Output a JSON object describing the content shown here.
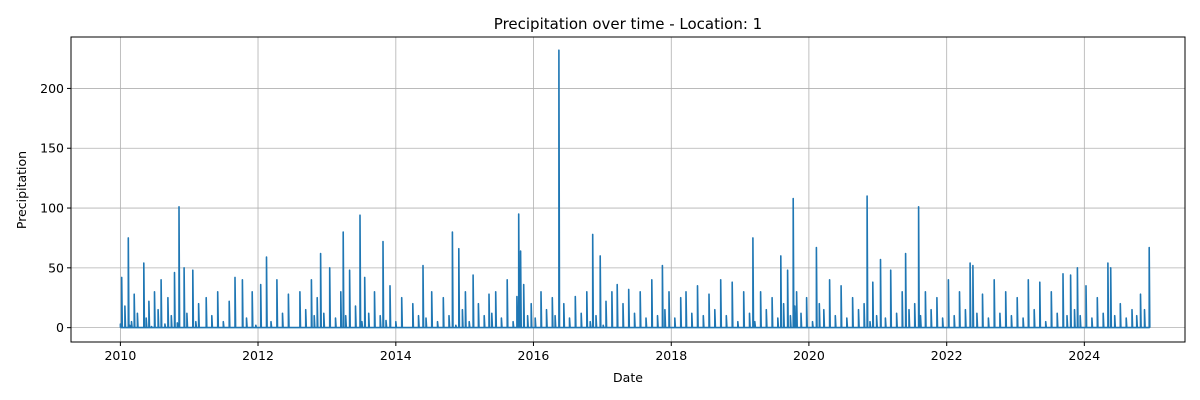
{
  "chart_data": {
    "type": "line",
    "title": "Precipitation over time - Location: 1",
    "xlabel": "Date",
    "ylabel": "Precipitation",
    "grid": true,
    "x_axis_type": "date",
    "xlim": [
      "2009-04-14",
      "2025-06-18"
    ],
    "ylim": [
      -12,
      243
    ],
    "x_ticks": [
      "2010",
      "2012",
      "2014",
      "2016",
      "2018",
      "2020",
      "2022",
      "2024"
    ],
    "y_ticks": [
      "0",
      "50",
      "100",
      "150",
      "200"
    ],
    "line_color": "#1f77b4",
    "series": [
      {
        "x": [
          "2010-01-01",
          "2010-01-08",
          "2010-01-15",
          "2010-01-25",
          "2010-02-06",
          "2010-02-12",
          "2010-02-20",
          "2010-03-01",
          "2010-03-15",
          "2010-04-01",
          "2010-04-20",
          "2010-05-05",
          "2010-05-18",
          "2010-06-01",
          "2010-06-15",
          "2010-07-01",
          "2010-07-20",
          "2010-08-05",
          "2010-08-25",
          "2010-09-10",
          "2010-09-28",
          "2010-10-15",
          "2010-10-30",
          "2010-11-08",
          "2010-11-20",
          "2010-12-05",
          "2010-12-20",
          "2011-01-05",
          "2011-01-20",
          "2011-02-05",
          "2011-02-20",
          "2011-03-10",
          "2011-04-01",
          "2011-05-01",
          "2011-06-01",
          "2011-07-01",
          "2011-08-01",
          "2011-09-01",
          "2011-09-20",
          "2011-10-10",
          "2011-11-01",
          "2011-12-01",
          "2011-12-20",
          "2012-01-15",
          "2012-02-01",
          "2012-02-15",
          "2012-03-10",
          "2012-04-10",
          "2012-05-10",
          "2012-06-10",
          "2012-07-10",
          "2012-08-10",
          "2012-09-10",
          "2012-10-10",
          "2012-10-25",
          "2012-11-10",
          "2012-11-28",
          "2012-12-15",
          "2013-01-15",
          "2013-02-15",
          "2013-03-15",
          "2013-03-28",
          "2013-04-10",
          "2013-05-01",
          "2013-06-01",
          "2013-06-25",
          "2013-07-05",
          "2013-07-20",
          "2013-08-10",
          "2013-09-10",
          "2013-10-10",
          "2013-10-25",
          "2013-11-10",
          "2013-12-01",
          "2014-01-01",
          "2014-02-01",
          "2014-03-01",
          "2014-04-01",
          "2014-05-01",
          "2014-05-25",
          "2014-06-10",
          "2014-07-10",
          "2014-08-10",
          "2014-09-10",
          "2014-10-10",
          "2014-10-28",
          "2014-11-15",
          "2014-12-01",
          "2014-12-20",
          "2015-01-05",
          "2015-01-25",
          "2015-02-15",
          "2015-03-15",
          "2015-04-15",
          "2015-05-10",
          "2015-05-25",
          "2015-06-15",
          "2015-07-15",
          "2015-08-15",
          "2015-09-15",
          "2015-10-05",
          "2015-10-15",
          "2015-10-25",
          "2015-11-10",
          "2015-12-01",
          "2015-12-20",
          "2016-01-10",
          "2016-02-10",
          "2016-03-10",
          "2016-04-10",
          "2016-04-25",
          "2016-05-10",
          "2016-05-15",
          "2016-05-20",
          "2016-06-10",
          "2016-07-10",
          "2016-08-10",
          "2016-09-10",
          "2016-10-10",
          "2016-10-28",
          "2016-11-10",
          "2016-11-28",
          "2016-12-20",
          "2017-01-05",
          "2017-01-20",
          "2017-02-20",
          "2017-03-20",
          "2017-04-20",
          "2017-05-20",
          "2017-06-20",
          "2017-07-20",
          "2017-08-20",
          "2017-09-20",
          "2017-10-20",
          "2017-11-15",
          "2017-11-28",
          "2017-12-20",
          "2018-01-20",
          "2018-02-20",
          "2018-03-20",
          "2018-04-20",
          "2018-05-20",
          "2018-06-20",
          "2018-07-20",
          "2018-08-20",
          "2018-09-20",
          "2018-10-20",
          "2018-11-20",
          "2018-12-20",
          "2019-01-20",
          "2019-02-20",
          "2019-03-10",
          "2019-03-20",
          "2019-04-20",
          "2019-05-20",
          "2019-06-20",
          "2019-07-20",
          "2019-08-05",
          "2019-08-20",
          "2019-09-10",
          "2019-09-25",
          "2019-10-10",
          "2019-10-18",
          "2019-10-28",
          "2019-11-20",
          "2019-12-20",
          "2020-01-20",
          "2020-02-10",
          "2020-02-25",
          "2020-03-20",
          "2020-04-20",
          "2020-05-20",
          "2020-06-20",
          "2020-07-20",
          "2020-08-20",
          "2020-09-20",
          "2020-10-20",
          "2020-11-05",
          "2020-11-20",
          "2020-12-05",
          "2020-12-25",
          "2021-01-15",
          "2021-02-10",
          "2021-03-10",
          "2021-04-10",
          "2021-05-10",
          "2021-05-28",
          "2021-06-15",
          "2021-07-15",
          "2021-08-05",
          "2021-08-15",
          "2021-09-10",
          "2021-10-10",
          "2021-11-10",
          "2021-12-10",
          "2022-01-10",
          "2022-02-10",
          "2022-03-10",
          "2022-04-10",
          "2022-05-05",
          "2022-05-20",
          "2022-06-10",
          "2022-07-10",
          "2022-08-10",
          "2022-09-10",
          "2022-10-10",
          "2022-11-10",
          "2022-12-10",
          "2023-01-10",
          "2023-02-10",
          "2023-03-10",
          "2023-04-10",
          "2023-05-10",
          "2023-06-10",
          "2023-07-10",
          "2023-08-10",
          "2023-09-10",
          "2023-10-01",
          "2023-10-20",
          "2023-11-10",
          "2023-11-25",
          "2023-12-10",
          "2024-01-10",
          "2024-02-10",
          "2024-03-10",
          "2024-04-10",
          "2024-05-05",
          "2024-05-20",
          "2024-06-10",
          "2024-07-10",
          "2024-08-10",
          "2024-09-10",
          "2024-10-05",
          "2024-10-25",
          "2024-11-15",
          "2024-12-01",
          "2024-12-10"
        ],
        "y": [
          3,
          42,
          0,
          18,
          0,
          75,
          2,
          5,
          28,
          12,
          0,
          54,
          8,
          22,
          1,
          30,
          15,
          40,
          3,
          25,
          10,
          46,
          4,
          101,
          0,
          50,
          12,
          0,
          48,
          5,
          20,
          0,
          25,
          10,
          30,
          5,
          22,
          42,
          0,
          40,
          8,
          30,
          2,
          36,
          0,
          59,
          5,
          40,
          12,
          28,
          0,
          30,
          15,
          40,
          10,
          25,
          62,
          12,
          50,
          8,
          30,
          80,
          10,
          48,
          18,
          94,
          5,
          42,
          12,
          30,
          10,
          72,
          6,
          35,
          5,
          25,
          0,
          20,
          10,
          52,
          8,
          30,
          5,
          25,
          10,
          80,
          2,
          66,
          15,
          30,
          5,
          44,
          20,
          10,
          28,
          12,
          30,
          8,
          40,
          5,
          26,
          95,
          64,
          36,
          10,
          20,
          8,
          30,
          15,
          25,
          10,
          0,
          232,
          0,
          20,
          8,
          26,
          12,
          30,
          5,
          78,
          10,
          60,
          2,
          22,
          30,
          36,
          20,
          32,
          12,
          30,
          8,
          40,
          10,
          52,
          15,
          30,
          8,
          25,
          30,
          12,
          35,
          10,
          28,
          15,
          40,
          10,
          38,
          5,
          30,
          12,
          75,
          5,
          30,
          15,
          25,
          8,
          60,
          20,
          48,
          10,
          108,
          18,
          30,
          12,
          25,
          5,
          67,
          20,
          15,
          40,
          10,
          35,
          8,
          25,
          15,
          20,
          110,
          5,
          38,
          10,
          57,
          8,
          48,
          12,
          30,
          62,
          15,
          20,
          101,
          10,
          30,
          15,
          25,
          8,
          40,
          10,
          30,
          15,
          54,
          52,
          12,
          28,
          8,
          40,
          12,
          30,
          10,
          25,
          8,
          40,
          15,
          38,
          5,
          30,
          12,
          45,
          10,
          44,
          15,
          50,
          10,
          35,
          8,
          25,
          12,
          54,
          50,
          10,
          20,
          8,
          15,
          10,
          28,
          15,
          0,
          67
        ]
      }
    ]
  }
}
